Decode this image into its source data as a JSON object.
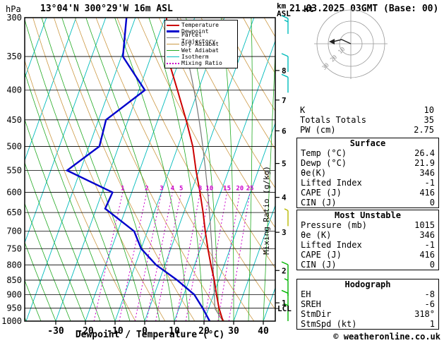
{
  "header": {
    "station_title": "13°04'N 300°29'W 16m ASL",
    "datetime_title": "21.03.2025 03GMT (Base: 00)"
  },
  "axes": {
    "pressure_unit": "hPa",
    "altitude_unit_line1": "km",
    "altitude_unit_line2": "ASL",
    "x_label": "Dewpoint / Temperature (°C)",
    "mixing_ratio_axis_label": "Mixing Ratio (g/kg)",
    "lcl_label": "LCL",
    "lcl_pressure_hpa": 951,
    "pressure_ticks": [
      300,
      350,
      400,
      450,
      500,
      550,
      600,
      650,
      700,
      750,
      800,
      850,
      900,
      950,
      1000
    ],
    "temp_ticks_c": [
      -30,
      -20,
      -10,
      0,
      10,
      20,
      30,
      40
    ],
    "km_ticks": [
      {
        "km": 8,
        "p": 370
      },
      {
        "km": 7,
        "p": 416
      },
      {
        "km": 6,
        "p": 470
      },
      {
        "km": 5,
        "p": 535
      },
      {
        "km": 4,
        "p": 612
      },
      {
        "km": 3,
        "p": 703
      },
      {
        "km": 2,
        "p": 818
      },
      {
        "km": 1,
        "p": 930
      }
    ]
  },
  "legend": {
    "items": [
      {
        "label": "Temperature",
        "color": "#cc0000",
        "thickness": 2,
        "dash": "solid"
      },
      {
        "label": "Dewpoint",
        "color": "#0000cc",
        "thickness": 3,
        "dash": "solid"
      },
      {
        "label": "Parcel Trajectory",
        "color": "#777777",
        "thickness": 1,
        "dash": "solid"
      },
      {
        "label": "Dry Adiabat",
        "color": "#cc9944",
        "thickness": 1,
        "dash": "solid"
      },
      {
        "label": "Wet Adiabat",
        "color": "#22aa22",
        "thickness": 1,
        "dash": "solid"
      },
      {
        "label": "Isotherm",
        "color": "#00bbbb",
        "thickness": 1,
        "dash": "solid"
      },
      {
        "label": "Mixing Ratio",
        "color": "#cc00cc",
        "thickness": 2,
        "dash": "dotted"
      }
    ]
  },
  "chart_data": {
    "type": "skewt-log-p",
    "pressure_range_hpa": [
      300,
      1000
    ],
    "isotherm_step_c": 10,
    "dry_adiabat_theta_k": [
      270,
      280,
      290,
      300,
      310,
      320,
      330,
      340,
      350,
      360,
      370,
      380,
      390,
      400,
      410,
      420,
      430,
      440
    ],
    "wet_adiabat_start_temps_c": [
      -60,
      -55,
      -50,
      -45,
      -40,
      -35,
      -30,
      -25,
      -20,
      -15,
      -10,
      -5,
      0,
      5,
      10,
      15,
      20,
      25,
      30,
      35,
      40
    ],
    "mixing_ratio_lines_g_kg": [
      1,
      2,
      3,
      4,
      5,
      8,
      10,
      15,
      20,
      25
    ],
    "temperature_profile": [
      {
        "p": 1000,
        "t": 26.4
      },
      {
        "p": 950,
        "t": 23.5
      },
      {
        "p": 900,
        "t": 21.0
      },
      {
        "p": 850,
        "t": 18.5
      },
      {
        "p": 800,
        "t": 15.5
      },
      {
        "p": 750,
        "t": 12.5
      },
      {
        "p": 700,
        "t": 9.5
      },
      {
        "p": 650,
        "t": 6.5
      },
      {
        "p": 600,
        "t": 3.0
      },
      {
        "p": 550,
        "t": -1.0
      },
      {
        "p": 500,
        "t": -5.0
      },
      {
        "p": 450,
        "t": -10.5
      },
      {
        "p": 400,
        "t": -17.0
      },
      {
        "p": 350,
        "t": -24.5
      },
      {
        "p": 300,
        "t": -29.5
      }
    ],
    "dewpoint_profile": [
      {
        "p": 1000,
        "t": 21.9
      },
      {
        "p": 950,
        "t": 18.0
      },
      {
        "p": 900,
        "t": 13.5
      },
      {
        "p": 850,
        "t": 6.0
      },
      {
        "p": 800,
        "t": -3.0
      },
      {
        "p": 750,
        "t": -10.0
      },
      {
        "p": 700,
        "t": -14.5
      },
      {
        "p": 640,
        "t": -27.0
      },
      {
        "p": 600,
        "t": -26.5
      },
      {
        "p": 550,
        "t": -44.5
      },
      {
        "p": 500,
        "t": -36.5
      },
      {
        "p": 450,
        "t": -37.5
      },
      {
        "p": 400,
        "t": -28.0
      },
      {
        "p": 350,
        "t": -39.5
      },
      {
        "p": 300,
        "t": -43.0
      }
    ],
    "parcel": {
      "surface_temp_c": 26.4,
      "surface_dewp_c": 21.9,
      "lcl_pressure_hpa": 951
    },
    "wind_barbs": [
      {
        "p": 320,
        "speed_kt": 15,
        "color": "#00bbbb"
      },
      {
        "p": 372,
        "speed_kt": 10,
        "color": "#00bbbb"
      },
      {
        "p": 404,
        "speed_kt": 10,
        "color": "#00bbbb"
      },
      {
        "p": 686,
        "speed_kt": 5,
        "color": "#b8b800"
      },
      {
        "p": 850,
        "speed_kt": 10,
        "color": "#00b400"
      },
      {
        "p": 905,
        "speed_kt": 5,
        "color": "#00b400"
      },
      {
        "p": 952,
        "speed_kt": 10,
        "color": "#00b400"
      },
      {
        "p": 1000,
        "speed_kt": 5,
        "color": "#00b400"
      }
    ],
    "colors": {
      "temperature": "#cc0000",
      "dewpoint": "#0000cc",
      "parcel": "#777777",
      "dry_adiabat": "#cc9944",
      "wet_adiabat": "#22aa22",
      "isotherm": "#00bbbb",
      "mixing_ratio": "#cc00cc",
      "grid": "#000000"
    }
  },
  "hodograph": {
    "unit_label": "kt",
    "rings_kt": [
      10,
      20,
      30
    ],
    "ring_labels": [
      "10",
      "20",
      "30"
    ]
  },
  "tables": [
    {
      "title": "",
      "rows": [
        [
          "K",
          "10"
        ],
        [
          "Totals Totals",
          "35"
        ],
        [
          "PW (cm)",
          "2.75"
        ]
      ]
    },
    {
      "title": "Surface",
      "rows": [
        [
          "Temp (°C)",
          "26.4"
        ],
        [
          "Dewp (°C)",
          "21.9"
        ],
        [
          "θe(K)",
          "346"
        ],
        [
          "Lifted Index",
          "-1"
        ],
        [
          "CAPE (J)",
          "416"
        ],
        [
          "CIN (J)",
          "0"
        ]
      ]
    },
    {
      "title": "Most Unstable",
      "rows": [
        [
          "Pressure (mb)",
          "1015"
        ],
        [
          "θe (K)",
          "346"
        ],
        [
          "Lifted Index",
          "-1"
        ],
        [
          "CAPE (J)",
          "416"
        ],
        [
          "CIN (J)",
          "0"
        ]
      ]
    },
    {
      "title": "Hodograph",
      "rows": [
        [
          "EH",
          "-8"
        ],
        [
          "SREH",
          "-6"
        ],
        [
          "StmDir",
          "318°"
        ],
        [
          "StmSpd (kt)",
          "1"
        ]
      ]
    }
  ],
  "footer": {
    "copyright": "© weatheronline.co.uk"
  }
}
